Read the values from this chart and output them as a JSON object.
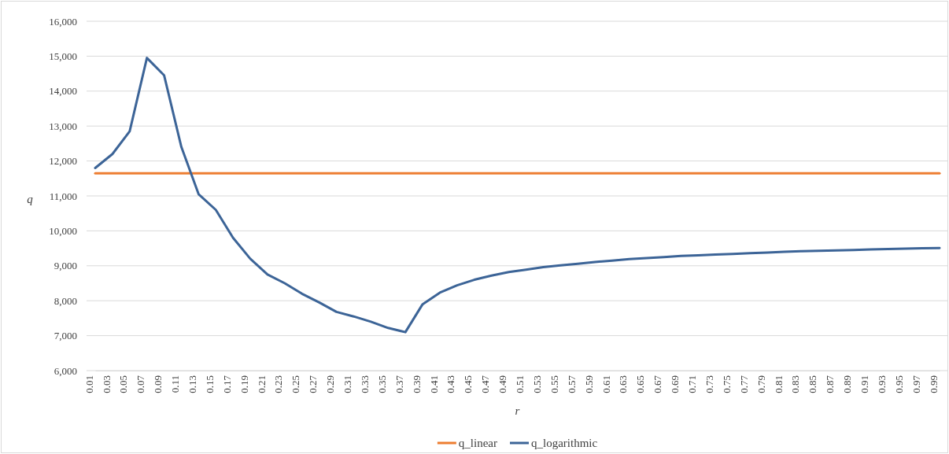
{
  "chart_data": {
    "type": "line",
    "xlabel": "r",
    "ylabel": "q",
    "categories": [
      "0.01",
      "0.03",
      "0.05",
      "0.07",
      "0.09",
      "0.11",
      "0.13",
      "0.15",
      "0.17",
      "0.19",
      "0.21",
      "0.23",
      "0.25",
      "0.27",
      "0.29",
      "0.31",
      "0.33",
      "0.35",
      "0.37",
      "0.39",
      "0.41",
      "0.43",
      "0.45",
      "0.47",
      "0.49",
      "0.51",
      "0.53",
      "0.55",
      "0.57",
      "0.59",
      "0.61",
      "0.63",
      "0.65",
      "0.67",
      "0.69",
      "0.71",
      "0.73",
      "0.75",
      "0.77",
      "0.79",
      "0.81",
      "0.83",
      "0.85",
      "0.87",
      "0.89",
      "0.91",
      "0.93",
      "0.95",
      "0.97",
      "0.99"
    ],
    "series": [
      {
        "name": "q_linear",
        "color": "#ed7d31",
        "values": [
          11650,
          11650,
          11650,
          11650,
          11650,
          11650,
          11650,
          11650,
          11650,
          11650,
          11650,
          11650,
          11650,
          11650,
          11650,
          11650,
          11650,
          11650,
          11650,
          11650,
          11650,
          11650,
          11650,
          11650,
          11650,
          11650,
          11650,
          11650,
          11650,
          11650,
          11650,
          11650,
          11650,
          11650,
          11650,
          11650,
          11650,
          11650,
          11650,
          11650,
          11650,
          11650,
          11650,
          11650,
          11650,
          11650,
          11650,
          11650,
          11650,
          11650
        ]
      },
      {
        "name": "q_logarithmic",
        "color": "#3c6497",
        "values": [
          11800,
          12200,
          12850,
          14950,
          14450,
          12400,
          11050,
          10600,
          9800,
          9200,
          8750,
          8500,
          8200,
          7950,
          7680,
          7550,
          7400,
          7220,
          7100,
          7900,
          8230,
          8440,
          8600,
          8720,
          8820,
          8890,
          8960,
          9010,
          9060,
          9110,
          9150,
          9190,
          9220,
          9250,
          9280,
          9300,
          9320,
          9340,
          9360,
          9380,
          9400,
          9420,
          9430,
          9440,
          9450,
          9470,
          9480,
          9490,
          9500,
          9510
        ]
      }
    ],
    "ylim": [
      6000,
      16000
    ],
    "yticks": [
      {
        "value": 6000,
        "label": "6,000"
      },
      {
        "value": 7000,
        "label": "7,000"
      },
      {
        "value": 8000,
        "label": "8,000"
      },
      {
        "value": 9000,
        "label": "9,000"
      },
      {
        "value": 10000,
        "label": "10,000"
      },
      {
        "value": 11000,
        "label": "11,000"
      },
      {
        "value": 12000,
        "label": "12,000"
      },
      {
        "value": 13000,
        "label": "13,000"
      },
      {
        "value": 14000,
        "label": "14,000"
      },
      {
        "value": 15000,
        "label": "15,000"
      },
      {
        "value": 16000,
        "label": "16,000"
      }
    ],
    "grid": "y",
    "legend": "bottom",
    "marker": "none",
    "line_style": "solid"
  }
}
